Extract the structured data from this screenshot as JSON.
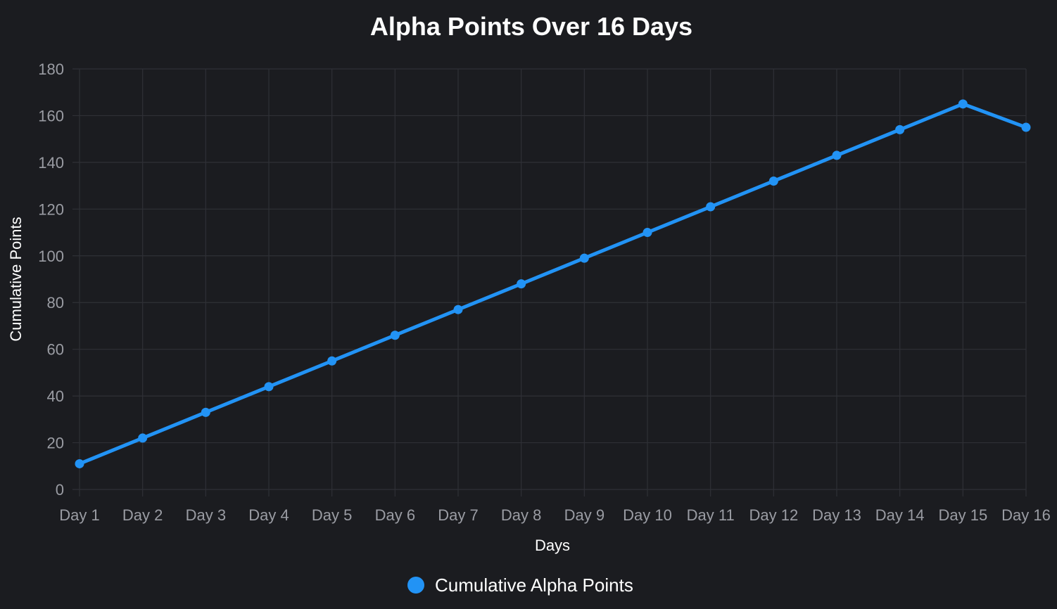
{
  "chart_data": {
    "type": "line",
    "title": "Alpha Points Over 16 Days",
    "xlabel": "Days",
    "ylabel": "Cumulative Points",
    "categories": [
      "Day 1",
      "Day 2",
      "Day 3",
      "Day 4",
      "Day 5",
      "Day 6",
      "Day 7",
      "Day 8",
      "Day 9",
      "Day 10",
      "Day 11",
      "Day 12",
      "Day 13",
      "Day 14",
      "Day 15",
      "Day 16"
    ],
    "series": [
      {
        "name": "Cumulative Alpha Points",
        "color": "#2293f5",
        "values": [
          11,
          22,
          33,
          44,
          55,
          66,
          77,
          88,
          99,
          110,
          121,
          132,
          143,
          154,
          165,
          155
        ]
      }
    ],
    "ylim": [
      0,
      180
    ],
    "yticks": [
      0,
      20,
      40,
      60,
      80,
      100,
      120,
      140,
      160,
      180
    ],
    "grid": true,
    "legend_position": "bottom"
  }
}
